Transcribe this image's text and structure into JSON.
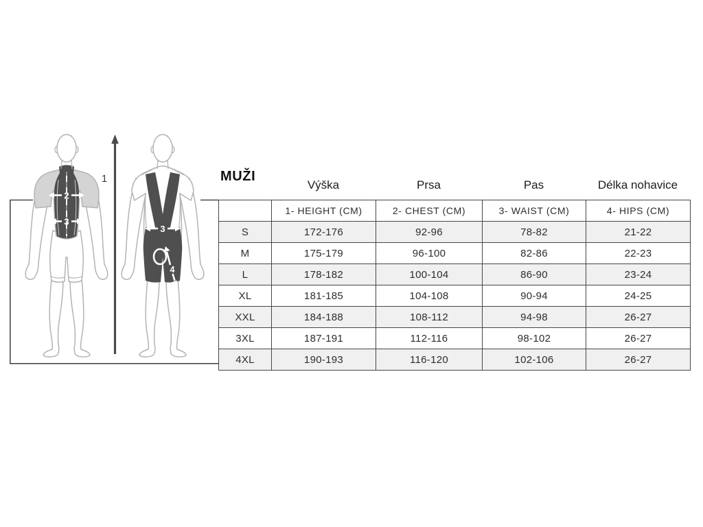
{
  "page_title": "MUŽI",
  "measure_labels_cz": [
    "Výška",
    "Prsa",
    "Pas",
    "Délka nohavice"
  ],
  "table": {
    "headers": [
      "",
      "1- HEIGHT (CM)",
      "2- CHEST (CM)",
      "3- WAIST (CM)",
      "4- HIPS (CM)"
    ],
    "rows": [
      {
        "size": "S",
        "cells": [
          "172-176",
          "92-96",
          "78-82",
          "21-22"
        ]
      },
      {
        "size": "M",
        "cells": [
          "175-179",
          "96-100",
          "82-86",
          "22-23"
        ]
      },
      {
        "size": "L",
        "cells": [
          "178-182",
          "100-104",
          "86-90",
          "23-24"
        ]
      },
      {
        "size": "XL",
        "cells": [
          "181-185",
          "104-108",
          "90-94",
          "24-25"
        ]
      },
      {
        "size": "XXL",
        "cells": [
          "184-188",
          "108-112",
          "94-98",
          "26-27"
        ]
      },
      {
        "size": "3XL",
        "cells": [
          "187-191",
          "112-116",
          "98-102",
          "26-27"
        ]
      },
      {
        "size": "4XL",
        "cells": [
          "190-193",
          "116-120",
          "102-106",
          "26-27"
        ]
      }
    ]
  },
  "figure_panel": {
    "markers": {
      "height": "1",
      "chest": "2",
      "waist_jersey": "3",
      "waist_bib": "3",
      "inseam": "4"
    }
  },
  "colors": {
    "row_stripe": "#f0f0f0",
    "table_border": "#454545",
    "frame_line": "#4a4a4a",
    "garment_dark": "#4f4f4f",
    "garment_light": "#d4d4d4",
    "body_outline": "#b3b3b3",
    "text": "#2d2d2d"
  }
}
